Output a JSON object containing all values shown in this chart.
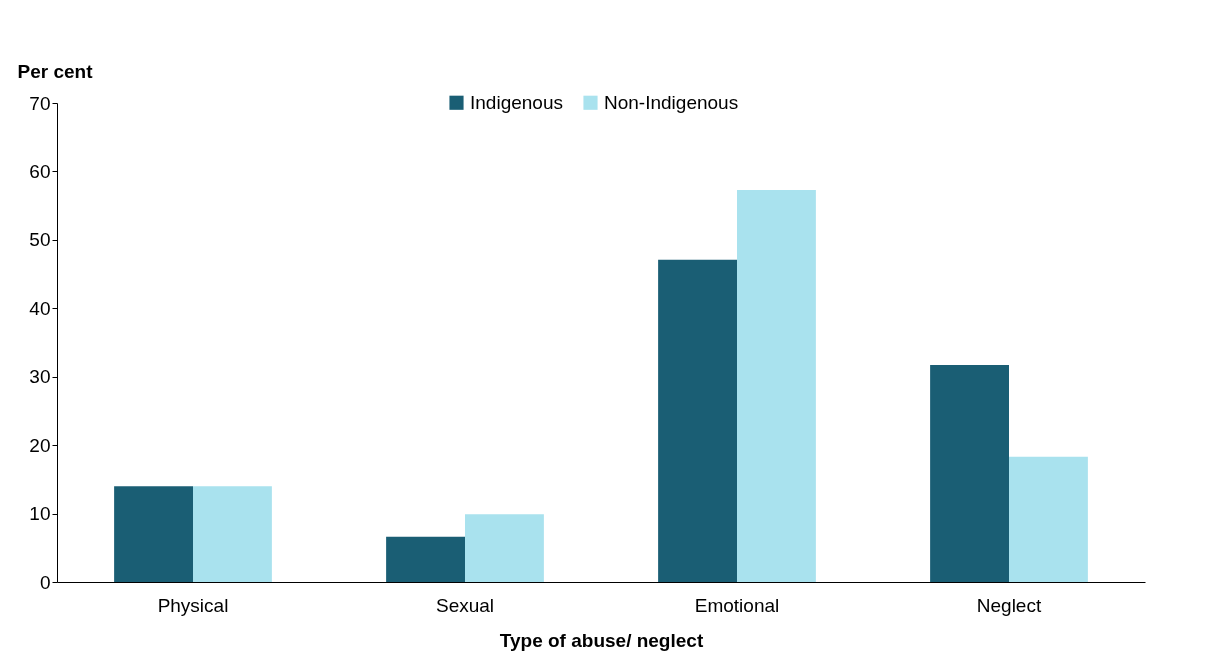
{
  "chart_data": {
    "type": "bar",
    "xlabel": "Type of abuse/ neglect",
    "ylabel": "Per cent",
    "categories": [
      "Physical",
      "Sexual",
      "Emotional",
      "Neglect"
    ],
    "series": [
      {
        "name": "Indigenous",
        "color": "#1a5e74",
        "values": [
          14.0,
          6.6,
          47.1,
          31.7
        ]
      },
      {
        "name": "Non-Indigenous",
        "color": "#a9e2ee",
        "values": [
          14.0,
          9.9,
          57.3,
          18.3
        ]
      }
    ],
    "ylim": [
      0,
      70
    ],
    "yticks": [
      0,
      10,
      20,
      30,
      40,
      50,
      60,
      70
    ],
    "grid": false,
    "legend": "top"
  }
}
